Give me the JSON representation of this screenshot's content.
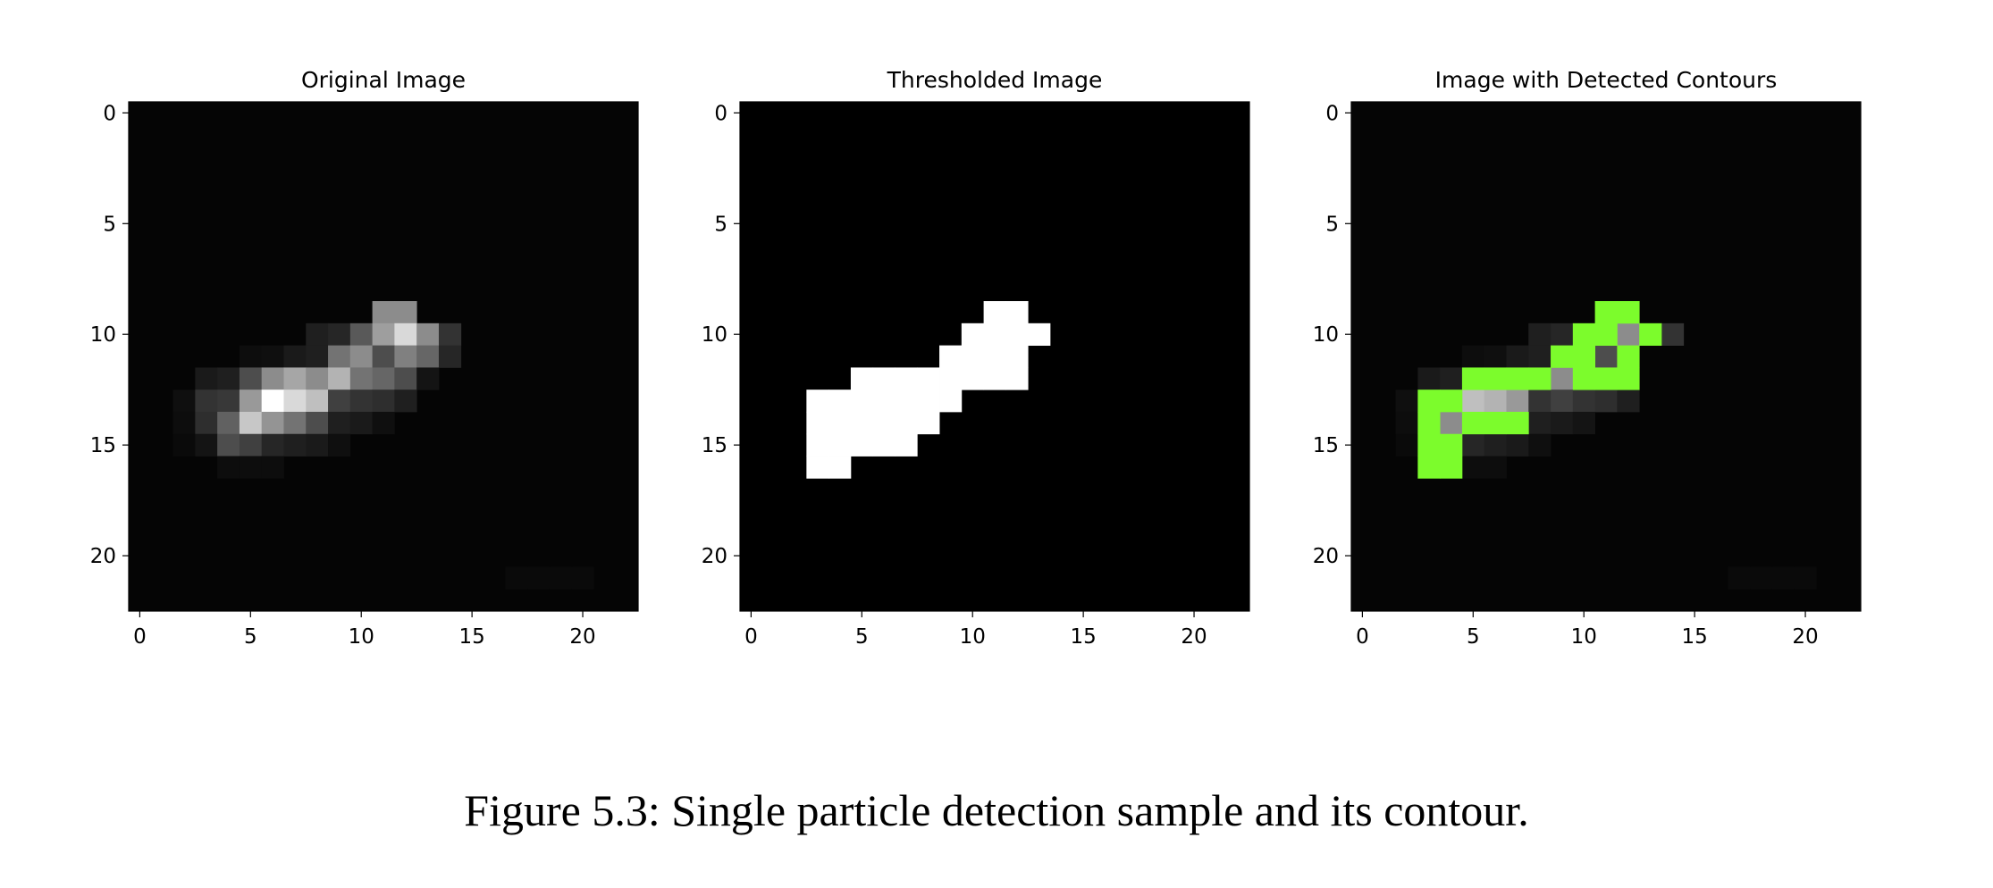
{
  "caption": "Figure 5.3: Single particle detection sample and its contour.",
  "colors": {
    "background": "#000000",
    "foreground": "#ffffff",
    "contour": "#7cfc2c"
  },
  "chart_data": [
    {
      "type": "heatmap",
      "title": "Original Image",
      "colormap": "gray",
      "xlim": [
        -0.5,
        22.5
      ],
      "ylim": [
        22.5,
        -0.5
      ],
      "xticks": [
        0,
        5,
        10,
        15,
        20
      ],
      "yticks": [
        0,
        5,
        10,
        15,
        20
      ],
      "grid": false,
      "rows": 23,
      "cols": 23,
      "background_value": 0.02,
      "pixels": [
        [
          9,
          11,
          0.55
        ],
        [
          9,
          12,
          0.55
        ],
        [
          10,
          8,
          0.12
        ],
        [
          10,
          9,
          0.15
        ],
        [
          10,
          10,
          0.35
        ],
        [
          10,
          11,
          0.62
        ],
        [
          10,
          12,
          0.85
        ],
        [
          10,
          13,
          0.55
        ],
        [
          10,
          14,
          0.2
        ],
        [
          11,
          5,
          0.05
        ],
        [
          11,
          6,
          0.06
        ],
        [
          11,
          7,
          0.1
        ],
        [
          11,
          8,
          0.12
        ],
        [
          11,
          9,
          0.45
        ],
        [
          11,
          10,
          0.55
        ],
        [
          11,
          11,
          0.3
        ],
        [
          11,
          12,
          0.5
        ],
        [
          11,
          13,
          0.4
        ],
        [
          11,
          14,
          0.15
        ],
        [
          12,
          3,
          0.1
        ],
        [
          12,
          4,
          0.12
        ],
        [
          12,
          5,
          0.3
        ],
        [
          12,
          6,
          0.55
        ],
        [
          12,
          7,
          0.65
        ],
        [
          12,
          8,
          0.55
        ],
        [
          12,
          9,
          0.7
        ],
        [
          12,
          10,
          0.45
        ],
        [
          12,
          11,
          0.4
        ],
        [
          12,
          12,
          0.3
        ],
        [
          12,
          13,
          0.08
        ],
        [
          13,
          2,
          0.06
        ],
        [
          13,
          3,
          0.2
        ],
        [
          13,
          4,
          0.22
        ],
        [
          13,
          5,
          0.6
        ],
        [
          13,
          6,
          1.0
        ],
        [
          13,
          7,
          0.85
        ],
        [
          13,
          8,
          0.75
        ],
        [
          13,
          9,
          0.25
        ],
        [
          13,
          10,
          0.2
        ],
        [
          13,
          11,
          0.18
        ],
        [
          13,
          12,
          0.12
        ],
        [
          14,
          2,
          0.05
        ],
        [
          14,
          3,
          0.18
        ],
        [
          14,
          4,
          0.38
        ],
        [
          14,
          5,
          0.78
        ],
        [
          14,
          6,
          0.58
        ],
        [
          14,
          7,
          0.45
        ],
        [
          14,
          8,
          0.3
        ],
        [
          14,
          9,
          0.12
        ],
        [
          14,
          10,
          0.1
        ],
        [
          14,
          11,
          0.06
        ],
        [
          15,
          2,
          0.04
        ],
        [
          15,
          3,
          0.08
        ],
        [
          15,
          4,
          0.3
        ],
        [
          15,
          5,
          0.25
        ],
        [
          15,
          6,
          0.15
        ],
        [
          15,
          7,
          0.12
        ],
        [
          15,
          8,
          0.1
        ],
        [
          15,
          9,
          0.06
        ],
        [
          16,
          4,
          0.05
        ],
        [
          16,
          5,
          0.05
        ],
        [
          16,
          6,
          0.05
        ],
        [
          21,
          17,
          0.04
        ],
        [
          21,
          18,
          0.04
        ],
        [
          21,
          19,
          0.04
        ],
        [
          21,
          20,
          0.04
        ]
      ]
    },
    {
      "type": "heatmap",
      "title": "Thresholded Image",
      "colormap": "gray",
      "xlim": [
        -0.5,
        22.5
      ],
      "ylim": [
        22.5,
        -0.5
      ],
      "xticks": [
        0,
        5,
        10,
        15,
        20
      ],
      "yticks": [
        0,
        5,
        10,
        15,
        20
      ],
      "grid": false,
      "rows": 23,
      "cols": 23,
      "background_value": 0,
      "pixels": [
        [
          9,
          11,
          1
        ],
        [
          9,
          12,
          1
        ],
        [
          10,
          10,
          1
        ],
        [
          10,
          11,
          1
        ],
        [
          10,
          12,
          1
        ],
        [
          10,
          13,
          1
        ],
        [
          11,
          9,
          1
        ],
        [
          11,
          10,
          1
        ],
        [
          11,
          11,
          1
        ],
        [
          11,
          12,
          1
        ],
        [
          12,
          5,
          1
        ],
        [
          12,
          6,
          1
        ],
        [
          12,
          7,
          1
        ],
        [
          12,
          8,
          1
        ],
        [
          12,
          9,
          1
        ],
        [
          12,
          10,
          1
        ],
        [
          12,
          11,
          1
        ],
        [
          12,
          12,
          1
        ],
        [
          13,
          3,
          1
        ],
        [
          13,
          4,
          1
        ],
        [
          13,
          5,
          1
        ],
        [
          13,
          6,
          1
        ],
        [
          13,
          7,
          1
        ],
        [
          13,
          8,
          1
        ],
        [
          13,
          9,
          1
        ],
        [
          14,
          3,
          1
        ],
        [
          14,
          4,
          1
        ],
        [
          14,
          5,
          1
        ],
        [
          14,
          6,
          1
        ],
        [
          14,
          7,
          1
        ],
        [
          14,
          8,
          1
        ],
        [
          15,
          3,
          1
        ],
        [
          15,
          4,
          1
        ],
        [
          15,
          5,
          1
        ],
        [
          15,
          6,
          1
        ],
        [
          15,
          7,
          1
        ],
        [
          16,
          3,
          1
        ],
        [
          16,
          4,
          1
        ]
      ]
    },
    {
      "type": "heatmap",
      "title": "Image with Detected Contours",
      "colormap": "gray",
      "xlim": [
        -0.5,
        22.5
      ],
      "ylim": [
        22.5,
        -0.5
      ],
      "xticks": [
        0,
        5,
        10,
        15,
        20
      ],
      "yticks": [
        0,
        5,
        10,
        15,
        20
      ],
      "grid": false,
      "rows": 23,
      "cols": 23,
      "background_value": 0.02,
      "pixels": [
        [
          10,
          8,
          0.12
        ],
        [
          10,
          9,
          0.15
        ],
        [
          10,
          12,
          0.55
        ],
        [
          10,
          14,
          0.2
        ],
        [
          11,
          5,
          0.05
        ],
        [
          11,
          6,
          0.06
        ],
        [
          11,
          7,
          0.1
        ],
        [
          11,
          8,
          0.12
        ],
        [
          11,
          11,
          0.3
        ],
        [
          12,
          3,
          0.1
        ],
        [
          12,
          4,
          0.12
        ],
        [
          12,
          9,
          0.55
        ],
        [
          13,
          2,
          0.06
        ],
        [
          13,
          5,
          0.75
        ],
        [
          13,
          6,
          0.7
        ],
        [
          13,
          7,
          0.6
        ],
        [
          13,
          8,
          0.2
        ],
        [
          13,
          9,
          0.25
        ],
        [
          13,
          10,
          0.2
        ],
        [
          13,
          11,
          0.18
        ],
        [
          13,
          12,
          0.12
        ],
        [
          14,
          2,
          0.05
        ],
        [
          14,
          4,
          0.55
        ],
        [
          14,
          8,
          0.12
        ],
        [
          14,
          9,
          0.1
        ],
        [
          14,
          10,
          0.08
        ],
        [
          15,
          2,
          0.04
        ],
        [
          15,
          5,
          0.15
        ],
        [
          15,
          6,
          0.12
        ],
        [
          15,
          7,
          0.1
        ],
        [
          15,
          8,
          0.06
        ],
        [
          16,
          5,
          0.05
        ],
        [
          16,
          6,
          0.05
        ],
        [
          21,
          17,
          0.04
        ],
        [
          21,
          18,
          0.04
        ],
        [
          21,
          19,
          0.04
        ],
        [
          21,
          20,
          0.04
        ]
      ],
      "contour_pixels": [
        [
          9,
          11
        ],
        [
          9,
          12
        ],
        [
          10,
          10
        ],
        [
          10,
          11
        ],
        [
          10,
          13
        ],
        [
          11,
          9
        ],
        [
          11,
          10
        ],
        [
          11,
          12
        ],
        [
          12,
          5
        ],
        [
          12,
          6
        ],
        [
          12,
          7
        ],
        [
          12,
          8
        ],
        [
          12,
          10
        ],
        [
          12,
          11
        ],
        [
          12,
          12
        ],
        [
          13,
          3
        ],
        [
          13,
          4
        ],
        [
          14,
          3
        ],
        [
          14,
          5
        ],
        [
          14,
          6
        ],
        [
          14,
          7
        ],
        [
          15,
          3
        ],
        [
          15,
          4
        ],
        [
          16,
          3
        ],
        [
          16,
          4
        ]
      ]
    }
  ]
}
